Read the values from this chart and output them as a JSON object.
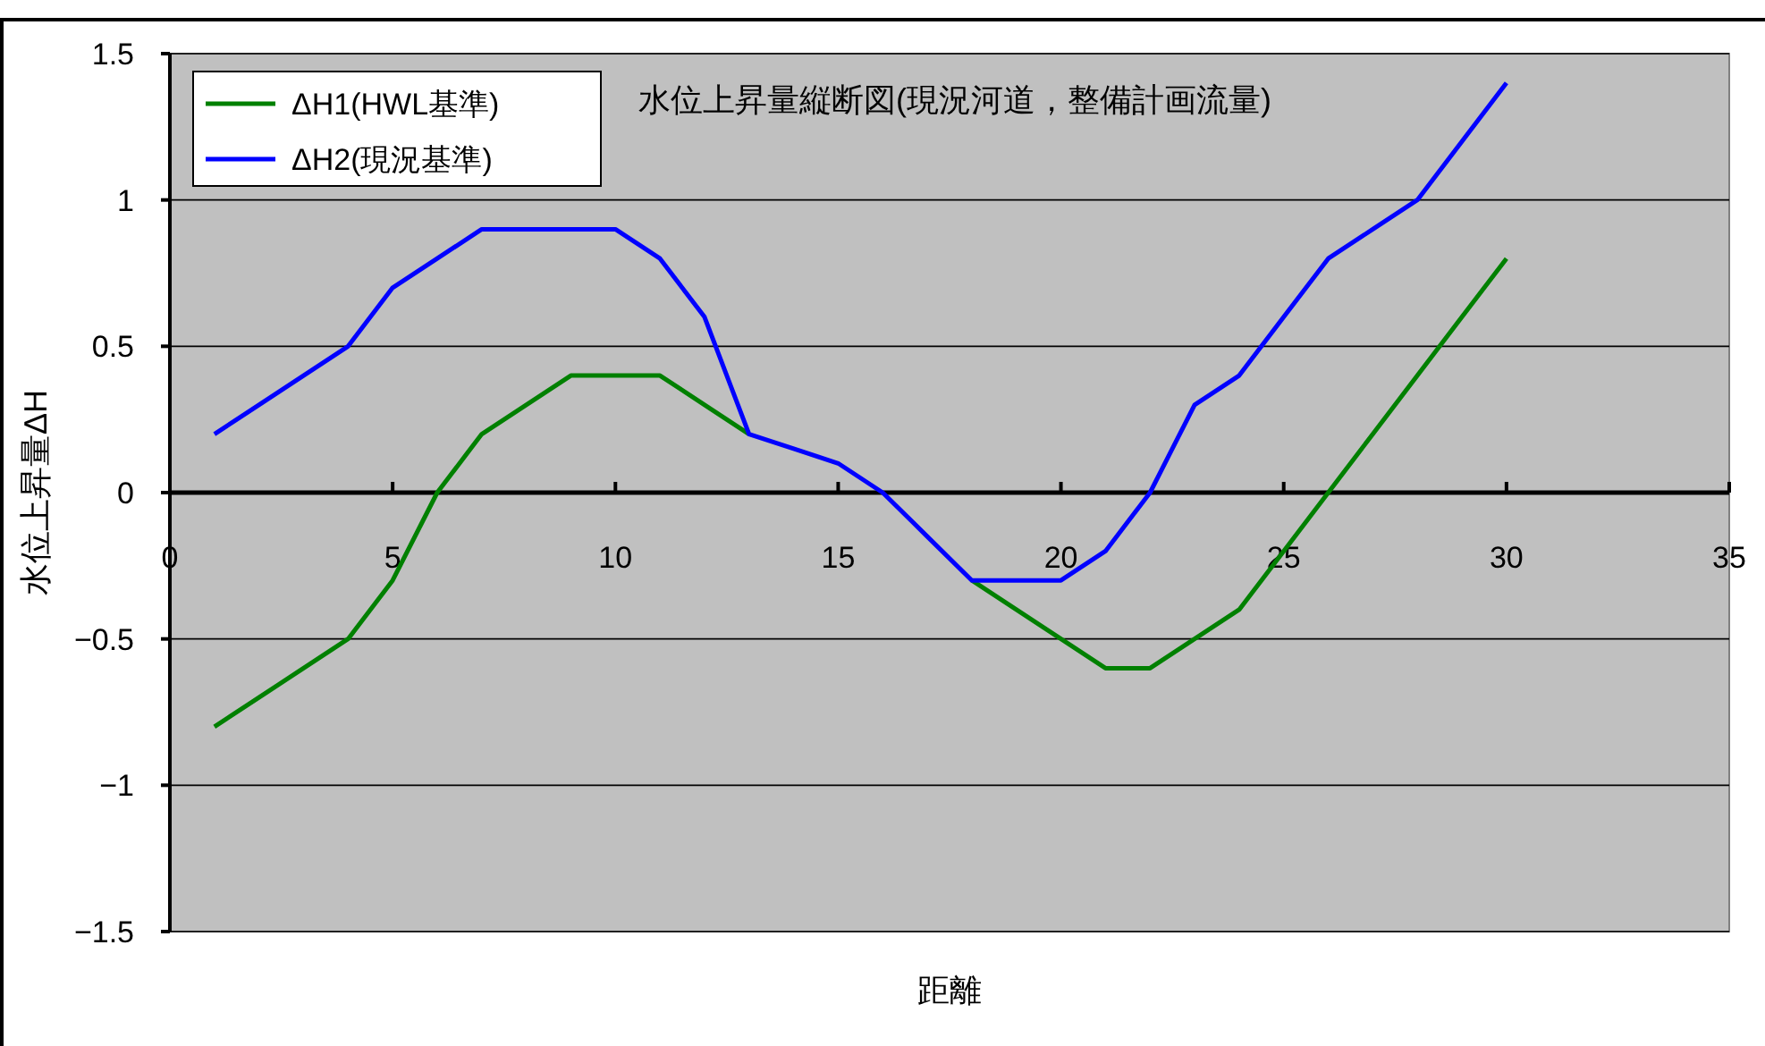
{
  "chart_data": {
    "type": "line",
    "title": "水位上昇量縦断図(現況河道，整備計画流量)",
    "xlabel": "距離",
    "ylabel": "水位上昇量ΔH",
    "x": [
      1,
      2,
      3,
      4,
      5,
      6,
      7,
      8,
      9,
      10,
      11,
      12,
      13,
      14,
      15,
      16,
      17,
      18,
      19,
      20,
      21,
      22,
      23,
      24,
      25,
      26,
      27,
      28,
      29,
      30
    ],
    "series": [
      {
        "name": "ΔH1(HWL基準)",
        "color": "#008000",
        "values": [
          -0.8,
          -0.7,
          -0.6,
          -0.5,
          -0.3,
          0,
          0.2,
          0.3,
          0.4,
          0.4,
          0.4,
          0.3,
          0.2,
          null,
          null,
          null,
          null,
          -0.3,
          -0.4,
          -0.5,
          -0.6,
          -0.6,
          -0.5,
          -0.4,
          -0.2,
          0,
          0.2,
          0.4,
          0.6,
          0.8
        ]
      },
      {
        "name": "ΔH2(現況基準)",
        "color": "#0000ff",
        "values": [
          0.2,
          0.3,
          0.4,
          0.5,
          0.7,
          0.8,
          0.9,
          0.9,
          0.9,
          0.9,
          0.8,
          0.6,
          0.2,
          0.15,
          0.1,
          0,
          -0.15,
          -0.3,
          -0.3,
          -0.3,
          -0.2,
          0,
          0.3,
          0.4,
          0.6,
          0.8,
          0.9,
          1.0,
          1.2,
          1.4
        ]
      }
    ],
    "xlim": [
      0,
      35
    ],
    "xticks": [
      0,
      5,
      10,
      15,
      20,
      25,
      30,
      35
    ],
    "ylim": [
      -1.5,
      1.5
    ],
    "yticks": [
      -1.5,
      -1,
      -0.5,
      0,
      0.5,
      1,
      1.5
    ],
    "grid": "y",
    "legend": "top left",
    "marker": "none",
    "line_style": "solid"
  }
}
